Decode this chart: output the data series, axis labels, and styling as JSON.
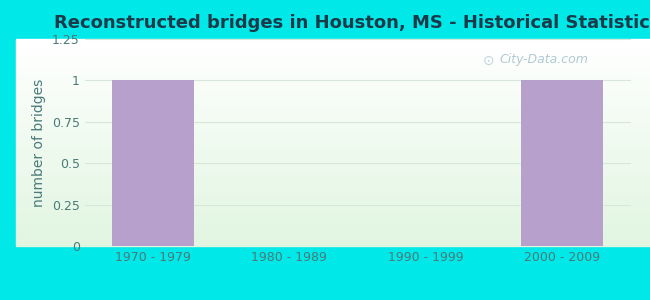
{
  "title": "Reconstructed bridges in Houston, MS - Historical Statistics",
  "categories": [
    "1970 - 1979",
    "1980 - 1989",
    "1990 - 1999",
    "2000 - 2009"
  ],
  "values": [
    1,
    0,
    0,
    1
  ],
  "bar_color": "#b8a0cc",
  "ylabel": "number of bridges",
  "ylim": [
    0,
    1.25
  ],
  "yticks": [
    0,
    0.25,
    0.5,
    0.75,
    1,
    1.25
  ],
  "background_color": "#00e8e8",
  "plot_bg_gradient_bottom": "#d4edda",
  "plot_bg_gradient_top": "#f0f8f0",
  "title_color": "#1a3a4a",
  "axis_label_color": "#4a7a7a",
  "tick_label_color": "#4a7a7a",
  "watermark": "City-Data.com",
  "grid_color": "#d8e8d8",
  "title_fontsize": 13,
  "ylabel_fontsize": 10,
  "tick_fontsize": 9
}
